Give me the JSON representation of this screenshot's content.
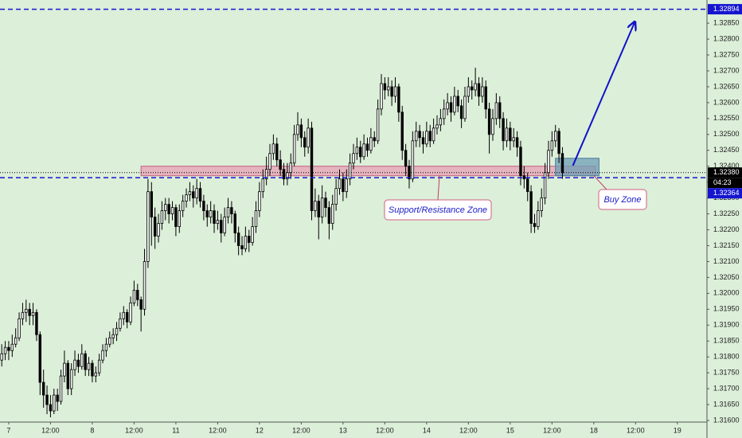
{
  "chart_data": {
    "type": "candlestick",
    "up_color": "#ffffff",
    "down_color": "#000000",
    "wick_color": "#000000",
    "background": "#dcefd9",
    "grid": false,
    "xlim": [
      -0.5,
      202.5
    ],
    "xticks": [
      {
        "value": 2,
        "label": "7"
      },
      {
        "value": 14,
        "label": "12:00"
      },
      {
        "value": 26,
        "label": "8"
      },
      {
        "value": 38,
        "label": "12:00"
      },
      {
        "value": 50,
        "label": "11"
      },
      {
        "value": 62,
        "label": "12:00"
      },
      {
        "value": 74,
        "label": "12"
      },
      {
        "value": 86,
        "label": "12:00"
      },
      {
        "value": 98,
        "label": "13"
      },
      {
        "value": 110,
        "label": "12:00"
      },
      {
        "value": 122,
        "label": "14"
      },
      {
        "value": 134,
        "label": "12:00"
      },
      {
        "value": 146,
        "label": "15"
      },
      {
        "value": 158,
        "label": "12:00"
      },
      {
        "value": 170,
        "label": "18"
      },
      {
        "value": 182,
        "label": "12:00"
      },
      {
        "value": 194,
        "label": "19"
      }
    ],
    "ylim": [
      1.31595,
      1.32923
    ],
    "yticks": [
      {
        "value": 1.316,
        "label": "1.31600"
      },
      {
        "value": 1.3165,
        "label": "1.31650"
      },
      {
        "value": 1.317,
        "label": "1.31700"
      },
      {
        "value": 1.3175,
        "label": "1.31750"
      },
      {
        "value": 1.318,
        "label": "1.31800"
      },
      {
        "value": 1.3185,
        "label": "1.31850"
      },
      {
        "value": 1.319,
        "label": "1.31900"
      },
      {
        "value": 1.3195,
        "label": "1.31950"
      },
      {
        "value": 1.32,
        "label": "1.32000"
      },
      {
        "value": 1.3205,
        "label": "1.32050"
      },
      {
        "value": 1.321,
        "label": "1.32100"
      },
      {
        "value": 1.3215,
        "label": "1.32150"
      },
      {
        "value": 1.322,
        "label": "1.32200"
      },
      {
        "value": 1.3225,
        "label": "1.32250"
      },
      {
        "value": 1.323,
        "label": "1.32300"
      },
      {
        "value": 1.3235,
        "label": "1.32350"
      },
      {
        "value": 1.324,
        "label": "1.32400"
      },
      {
        "value": 1.3245,
        "label": "1.32450"
      },
      {
        "value": 1.325,
        "label": "1.32500"
      },
      {
        "value": 1.3255,
        "label": "1.32550"
      },
      {
        "value": 1.326,
        "label": "1.32600"
      },
      {
        "value": 1.3265,
        "label": "1.32650"
      },
      {
        "value": 1.327,
        "label": "1.32700"
      },
      {
        "value": 1.3275,
        "label": "1.32750"
      },
      {
        "value": 1.328,
        "label": "1.32800"
      },
      {
        "value": 1.3285,
        "label": "1.32850"
      }
    ],
    "horizontal_lines": [
      {
        "value": 1.32894,
        "label": "1.32894",
        "color": "#1515d0"
      },
      {
        "value": 1.32364,
        "label": "1.32364",
        "color": "#1515d0"
      }
    ],
    "last_price": {
      "value": 1.3238,
      "label": "1.32380",
      "countdown": "04:23"
    },
    "zones": [
      {
        "label": "Support/Resistance Zone",
        "xlim": [
          40,
          170.5
        ],
        "ylim": [
          1.3237,
          1.324
        ],
        "color": "#e8a0b4",
        "border": "#c06080"
      },
      {
        "label": "Buy Zone",
        "xlim": [
          159,
          171.5
        ],
        "ylim": [
          1.3237,
          1.32425
        ],
        "color": "#6f9fb5",
        "border": "#4a7a9a"
      }
    ],
    "arrow": {
      "x": [
        164,
        181.7
      ],
      "y": [
        1.32402,
        1.32852
      ],
      "color": "#1212c8"
    },
    "candles": [
      [
        1.3179,
        1.3184,
        1.3177,
        1.3181
      ],
      [
        1.3181,
        1.3185,
        1.3179,
        1.3183
      ],
      [
        1.3183,
        1.3185,
        1.3179,
        1.3182
      ],
      [
        1.3182,
        1.3187,
        1.318,
        1.3184
      ],
      [
        1.3184,
        1.3189,
        1.3183,
        1.3186
      ],
      [
        1.3186,
        1.3194,
        1.3185,
        1.3192
      ],
      [
        1.3192,
        1.3197,
        1.319,
        1.3194
      ],
      [
        1.3194,
        1.3198,
        1.3191,
        1.3195
      ],
      [
        1.3195,
        1.3197,
        1.319,
        1.3193
      ],
      [
        1.3193,
        1.3197,
        1.319,
        1.3194
      ],
      [
        1.3194,
        1.3195,
        1.3185,
        1.3187
      ],
      [
        1.3187,
        1.3188,
        1.3168,
        1.3172
      ],
      [
        1.3172,
        1.3176,
        1.3164,
        1.3168
      ],
      [
        1.3168,
        1.3171,
        1.3162,
        1.3165
      ],
      [
        1.3165,
        1.3168,
        1.3161,
        1.3163
      ],
      [
        1.3163,
        1.317,
        1.3162,
        1.3168
      ],
      [
        1.3168,
        1.317,
        1.3163,
        1.3166
      ],
      [
        1.3166,
        1.3176,
        1.3165,
        1.3174
      ],
      [
        1.3174,
        1.3182,
        1.3172,
        1.3178
      ],
      [
        1.3178,
        1.3179,
        1.3168,
        1.317
      ],
      [
        1.317,
        1.3178,
        1.3168,
        1.3176
      ],
      [
        1.3176,
        1.3182,
        1.3174,
        1.3179
      ],
      [
        1.3179,
        1.3181,
        1.3175,
        1.3177
      ],
      [
        1.3177,
        1.3184,
        1.3176,
        1.3181
      ],
      [
        1.3181,
        1.3182,
        1.3174,
        1.3176
      ],
      [
        1.3176,
        1.318,
        1.3174,
        1.3178
      ],
      [
        1.3178,
        1.3179,
        1.3172,
        1.3174
      ],
      [
        1.3174,
        1.3177,
        1.3172,
        1.3175
      ],
      [
        1.3175,
        1.3181,
        1.3174,
        1.3179
      ],
      [
        1.3179,
        1.3184,
        1.3178,
        1.3182
      ],
      [
        1.3182,
        1.3186,
        1.318,
        1.3184
      ],
      [
        1.3184,
        1.3188,
        1.3183,
        1.3186
      ],
      [
        1.3186,
        1.3189,
        1.3184,
        1.3187
      ],
      [
        1.3187,
        1.3191,
        1.3185,
        1.3189
      ],
      [
        1.3189,
        1.3194,
        1.3188,
        1.3192
      ],
      [
        1.3192,
        1.3196,
        1.319,
        1.3194
      ],
      [
        1.3194,
        1.3195,
        1.3189,
        1.3191
      ],
      [
        1.3191,
        1.3199,
        1.319,
        1.3197
      ],
      [
        1.3197,
        1.3204,
        1.3196,
        1.3201
      ],
      [
        1.3201,
        1.3203,
        1.3196,
        1.3198
      ],
      [
        1.3198,
        1.3199,
        1.3188,
        1.3195
      ],
      [
        1.3195,
        1.3214,
        1.3193,
        1.321
      ],
      [
        1.321,
        1.3236,
        1.3208,
        1.3232
      ],
      [
        1.3232,
        1.3235,
        1.3215,
        1.3224
      ],
      [
        1.3224,
        1.3227,
        1.3214,
        1.3218
      ],
      [
        1.3218,
        1.3225,
        1.3216,
        1.3222
      ],
      [
        1.3222,
        1.3229,
        1.322,
        1.3226
      ],
      [
        1.3226,
        1.323,
        1.3223,
        1.3228
      ],
      [
        1.3228,
        1.323,
        1.3222,
        1.3225
      ],
      [
        1.3225,
        1.3229,
        1.3223,
        1.3227
      ],
      [
        1.3227,
        1.3228,
        1.3218,
        1.3221
      ],
      [
        1.3221,
        1.3228,
        1.3219,
        1.3226
      ],
      [
        1.3226,
        1.3231,
        1.3224,
        1.3229
      ],
      [
        1.3229,
        1.3233,
        1.3227,
        1.3231
      ],
      [
        1.3231,
        1.3235,
        1.3229,
        1.3232
      ],
      [
        1.3232,
        1.3234,
        1.3227,
        1.323
      ],
      [
        1.323,
        1.3236,
        1.3228,
        1.3233
      ],
      [
        1.3233,
        1.3235,
        1.3227,
        1.3229
      ],
      [
        1.3229,
        1.3231,
        1.3223,
        1.3226
      ],
      [
        1.3226,
        1.3228,
        1.3221,
        1.3224
      ],
      [
        1.3224,
        1.3229,
        1.3222,
        1.3226
      ],
      [
        1.3226,
        1.3228,
        1.3219,
        1.3222
      ],
      [
        1.3222,
        1.3226,
        1.322,
        1.3223
      ],
      [
        1.3223,
        1.3225,
        1.3216,
        1.3219
      ],
      [
        1.3219,
        1.3227,
        1.3218,
        1.3224
      ],
      [
        1.3224,
        1.323,
        1.3222,
        1.3227
      ],
      [
        1.3227,
        1.3229,
        1.3222,
        1.3225
      ],
      [
        1.3225,
        1.3226,
        1.3216,
        1.3219
      ],
      [
        1.3219,
        1.3221,
        1.3212,
        1.3215
      ],
      [
        1.3215,
        1.3218,
        1.3212,
        1.3214
      ],
      [
        1.3214,
        1.3221,
        1.3213,
        1.3218
      ],
      [
        1.3218,
        1.322,
        1.3213,
        1.3216
      ],
      [
        1.3216,
        1.3224,
        1.3215,
        1.3221
      ],
      [
        1.3221,
        1.3229,
        1.3219,
        1.3226
      ],
      [
        1.3226,
        1.3235,
        1.3224,
        1.3232
      ],
      [
        1.3232,
        1.3239,
        1.323,
        1.3236
      ],
      [
        1.3236,
        1.3243,
        1.3234,
        1.3239
      ],
      [
        1.3239,
        1.3247,
        1.3237,
        1.3244
      ],
      [
        1.3244,
        1.325,
        1.3242,
        1.3247
      ],
      [
        1.3247,
        1.3249,
        1.324,
        1.3242
      ],
      [
        1.3242,
        1.3245,
        1.3237,
        1.3239
      ],
      [
        1.3239,
        1.3241,
        1.3234,
        1.3236
      ],
      [
        1.3236,
        1.3241,
        1.3234,
        1.3238
      ],
      [
        1.3238,
        1.3244,
        1.3236,
        1.3241
      ],
      [
        1.3241,
        1.3253,
        1.324,
        1.325
      ],
      [
        1.325,
        1.3257,
        1.3248,
        1.3253
      ],
      [
        1.3253,
        1.3255,
        1.3246,
        1.3249
      ],
      [
        1.3249,
        1.3251,
        1.3243,
        1.3246
      ],
      [
        1.3246,
        1.3255,
        1.3244,
        1.3252
      ],
      [
        1.3252,
        1.3254,
        1.3223,
        1.3226
      ],
      [
        1.3226,
        1.3233,
        1.3224,
        1.3229
      ],
      [
        1.3229,
        1.3231,
        1.3217,
        1.3224
      ],
      [
        1.3224,
        1.3234,
        1.3222,
        1.323
      ],
      [
        1.323,
        1.3232,
        1.3224,
        1.3227
      ],
      [
        1.3227,
        1.3229,
        1.3217,
        1.3222
      ],
      [
        1.3222,
        1.3231,
        1.322,
        1.3228
      ],
      [
        1.3228,
        1.3236,
        1.3226,
        1.3233
      ],
      [
        1.3233,
        1.3239,
        1.3231,
        1.3236
      ],
      [
        1.3236,
        1.3238,
        1.3229,
        1.3232
      ],
      [
        1.3232,
        1.3239,
        1.323,
        1.3236
      ],
      [
        1.3236,
        1.3244,
        1.3234,
        1.3241
      ],
      [
        1.3241,
        1.3247,
        1.3239,
        1.3244
      ],
      [
        1.3244,
        1.3249,
        1.3242,
        1.3246
      ],
      [
        1.3246,
        1.3248,
        1.3241,
        1.3243
      ],
      [
        1.3243,
        1.325,
        1.3242,
        1.3247
      ],
      [
        1.3247,
        1.3249,
        1.3243,
        1.3245
      ],
      [
        1.3245,
        1.3252,
        1.3244,
        1.3249
      ],
      [
        1.3249,
        1.3251,
        1.3246,
        1.3248
      ],
      [
        1.3248,
        1.3261,
        1.3247,
        1.3258
      ],
      [
        1.3258,
        1.3269,
        1.3256,
        1.3266
      ],
      [
        1.3266,
        1.3268,
        1.3261,
        1.3264
      ],
      [
        1.3264,
        1.3268,
        1.3262,
        1.3265
      ],
      [
        1.3265,
        1.3267,
        1.3259,
        1.3262
      ],
      [
        1.3262,
        1.3268,
        1.326,
        1.3265
      ],
      [
        1.3265,
        1.3266,
        1.3254,
        1.3257
      ],
      [
        1.3257,
        1.3259,
        1.3242,
        1.3245
      ],
      [
        1.3245,
        1.3247,
        1.3237,
        1.324
      ],
      [
        1.324,
        1.3242,
        1.3233,
        1.3236
      ],
      [
        1.3236,
        1.3251,
        1.3235,
        1.3248
      ],
      [
        1.3248,
        1.3254,
        1.3246,
        1.3251
      ],
      [
        1.3251,
        1.3253,
        1.3246,
        1.3249
      ],
      [
        1.3249,
        1.3251,
        1.3244,
        1.3247
      ],
      [
        1.3247,
        1.3254,
        1.3246,
        1.3251
      ],
      [
        1.3251,
        1.3253,
        1.3246,
        1.3248
      ],
      [
        1.3248,
        1.3255,
        1.3247,
        1.3252
      ],
      [
        1.3252,
        1.3256,
        1.325,
        1.3253
      ],
      [
        1.3253,
        1.3258,
        1.3251,
        1.3255
      ],
      [
        1.3255,
        1.3261,
        1.3253,
        1.3258
      ],
      [
        1.3258,
        1.3263,
        1.3256,
        1.326
      ],
      [
        1.326,
        1.3262,
        1.3254,
        1.3257
      ],
      [
        1.3257,
        1.3265,
        1.3256,
        1.3262
      ],
      [
        1.3262,
        1.3264,
        1.3257,
        1.3259
      ],
      [
        1.3259,
        1.3261,
        1.3252,
        1.3255
      ],
      [
        1.3255,
        1.3265,
        1.3254,
        1.3262
      ],
      [
        1.3262,
        1.3268,
        1.326,
        1.3265
      ],
      [
        1.3265,
        1.3267,
        1.3261,
        1.3264
      ],
      [
        1.3264,
        1.3271,
        1.3262,
        1.3266
      ],
      [
        1.3266,
        1.3268,
        1.3259,
        1.3262
      ],
      [
        1.3262,
        1.3268,
        1.326,
        1.3265
      ],
      [
        1.3265,
        1.3267,
        1.3255,
        1.3258
      ],
      [
        1.3258,
        1.326,
        1.3244,
        1.325
      ],
      [
        1.325,
        1.3258,
        1.3248,
        1.3255
      ],
      [
        1.3255,
        1.3263,
        1.3253,
        1.326
      ],
      [
        1.326,
        1.3262,
        1.3252,
        1.3255
      ],
      [
        1.3255,
        1.3257,
        1.3245,
        1.3248
      ],
      [
        1.3248,
        1.3255,
        1.3246,
        1.3252
      ],
      [
        1.3252,
        1.3254,
        1.3245,
        1.3248
      ],
      [
        1.3248,
        1.3252,
        1.3246,
        1.3249
      ],
      [
        1.3249,
        1.3251,
        1.3243,
        1.3246
      ],
      [
        1.3246,
        1.3248,
        1.3234,
        1.3237
      ],
      [
        1.3237,
        1.324,
        1.3233,
        1.3236
      ],
      [
        1.3236,
        1.3238,
        1.3229,
        1.3232
      ],
      [
        1.3232,
        1.3234,
        1.3219,
        1.3222
      ],
      [
        1.3222,
        1.3225,
        1.3219,
        1.3221
      ],
      [
        1.3221,
        1.3229,
        1.322,
        1.3226
      ],
      [
        1.3226,
        1.3233,
        1.3224,
        1.323
      ],
      [
        1.323,
        1.3241,
        1.3228,
        1.3238
      ],
      [
        1.3238,
        1.3248,
        1.3236,
        1.3245
      ],
      [
        1.3245,
        1.3251,
        1.3243,
        1.3248
      ],
      [
        1.3248,
        1.3253,
        1.3246,
        1.3251
      ],
      [
        1.3251,
        1.3252,
        1.3241,
        1.3244
      ],
      [
        1.3244,
        1.3246,
        1.3236,
        1.3238
      ]
    ]
  }
}
